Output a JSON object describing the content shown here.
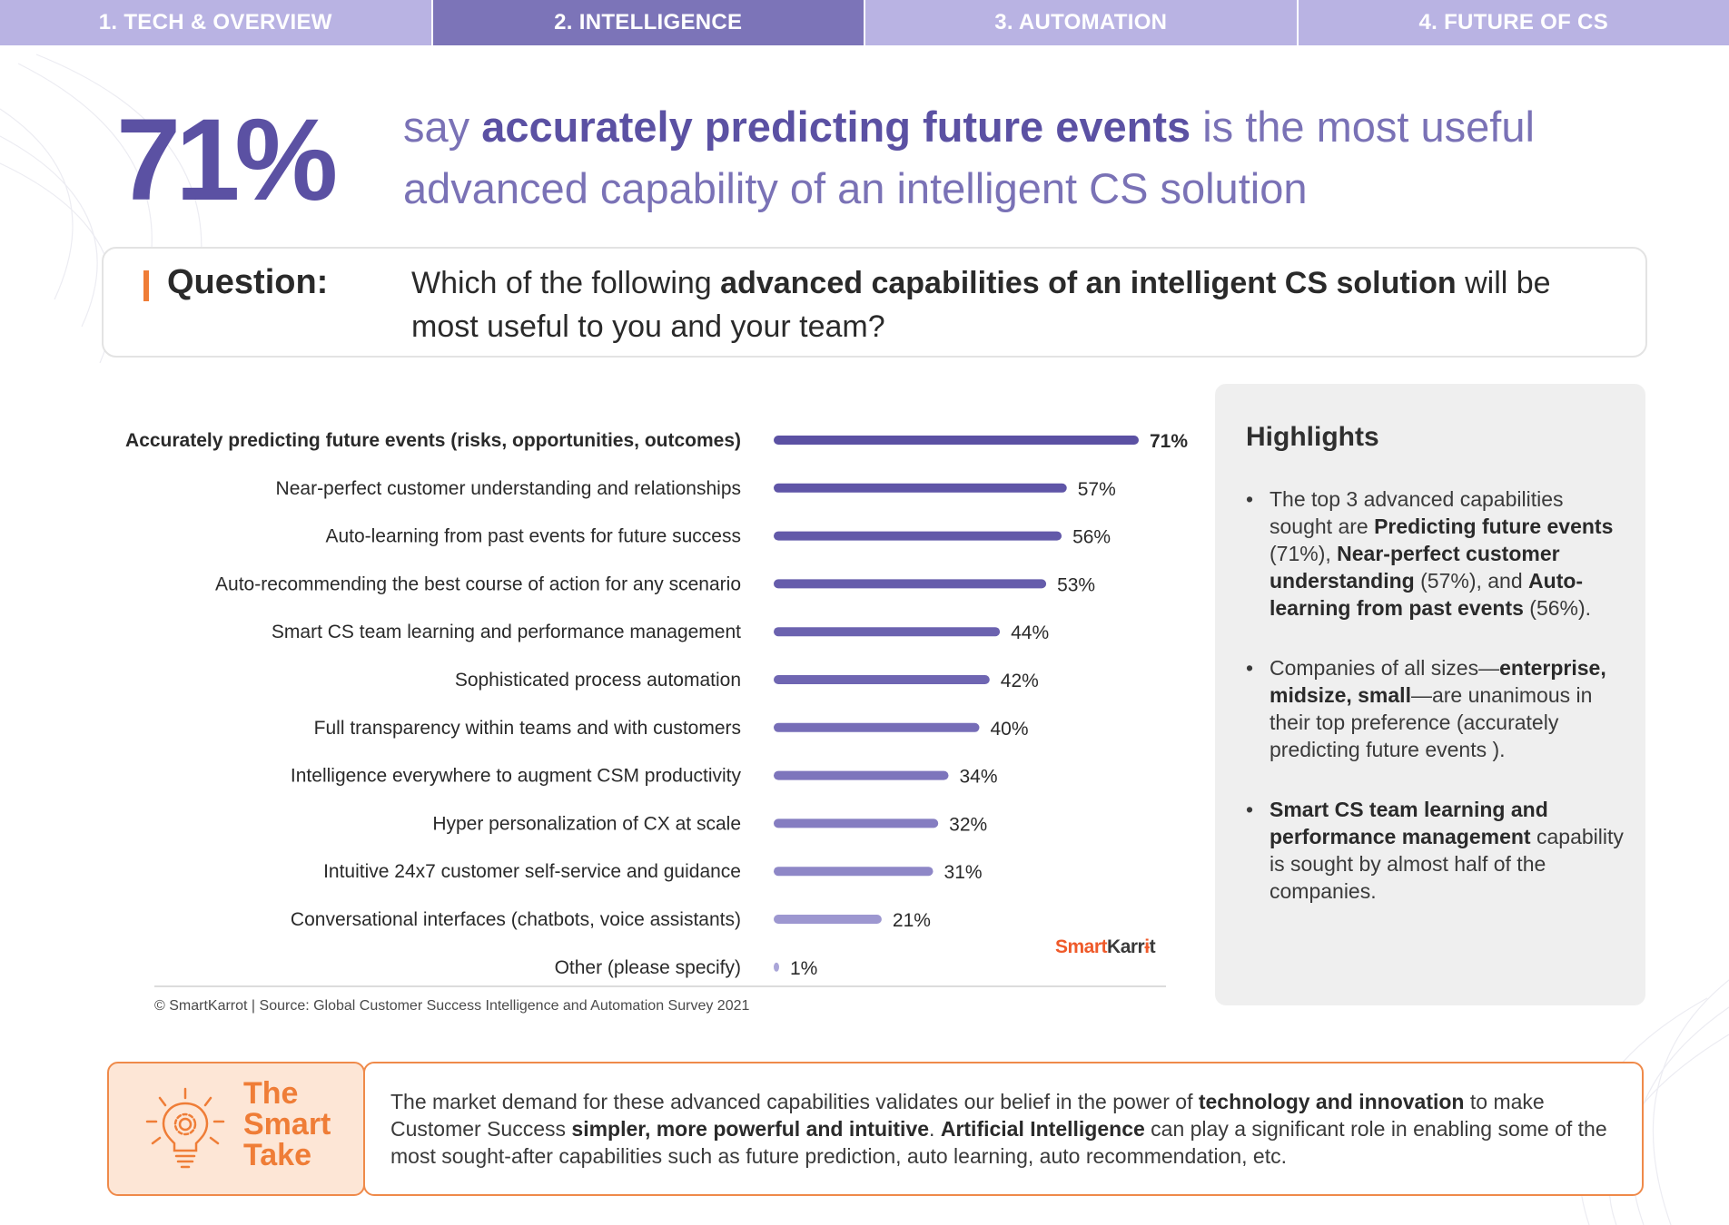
{
  "tabs": [
    {
      "label": "1. TECH & OVERVIEW",
      "active": false
    },
    {
      "label": "2. INTELLIGENCE",
      "active": true
    },
    {
      "label": "3. AUTOMATION",
      "active": false
    },
    {
      "label": "4. FUTURE OF CS",
      "active": false
    }
  ],
  "headline": {
    "stat": "71%",
    "pre": "say ",
    "emphasis": "accurately predicting future events",
    "post": " is the most useful advanced capability of an intelligent CS solution"
  },
  "question": {
    "label": "Question:",
    "pre": "Which of the following ",
    "emphasis": "advanced capabilities of an intelligent CS solution",
    "post": " will be most useful to you and your team?"
  },
  "chart_data": {
    "type": "bar",
    "orientation": "horizontal",
    "categories": [
      "Accurately predicting future events (risks, opportunities, outcomes)",
      "Near-perfect customer understanding and relationships",
      "Auto-learning from past events for future success",
      "Auto-recommending the best course of action for any scenario",
      "Smart CS team learning and performance management",
      "Sophisticated process automation",
      "Full transparency within teams and with customers",
      "Intelligence everywhere to augment CSM productivity",
      "Hyper personalization of CX at scale",
      "Intuitive 24x7 customer self-service and guidance",
      "Conversational interfaces (chatbots, voice assistants)",
      "Other (please specify)"
    ],
    "values": [
      71,
      57,
      56,
      53,
      44,
      42,
      40,
      34,
      32,
      31,
      21,
      1
    ],
    "value_labels": [
      "71%",
      "57%",
      "56%",
      "53%",
      "44%",
      "42%",
      "40%",
      "34%",
      "32%",
      "31%",
      "21%",
      "1%"
    ],
    "bar_colors": [
      "#5b51a3",
      "#5f55a7",
      "#6259a9",
      "#655cab",
      "#6b62af",
      "#6f66b2",
      "#766db7",
      "#7d75bc",
      "#857dc1",
      "#8e87c7",
      "#9d97d0",
      "#aaa5d8"
    ],
    "xlim": [
      0,
      71
    ],
    "grid": false,
    "legend": "none"
  },
  "brand": {
    "part1": "Smart",
    "part2": "Karr",
    "part3": "t"
  },
  "source": "© SmartKarrot | Source: Global Customer Success Intelligence and Automation Survey 2021",
  "highlights": {
    "title": "Highlights",
    "items": [
      {
        "s1": "The top 3 advanced capabilities sought are ",
        "b1": "Predicting future events",
        "s2": " (71%), ",
        "b2": "Near-perfect customer understanding",
        "s3": " (57%), and ",
        "b3": "Auto-learning from past events",
        "s4": " (56%)."
      },
      {
        "s1": "Companies of all sizes—",
        "b1": "enterprise, midsize, small",
        "s2": "—are unanimous in their top preference (accurately predicting future events )."
      },
      {
        "b1": "Smart CS team learning and performance management",
        "s2": " capability is sought by almost half of the companies."
      }
    ]
  },
  "smart_take": {
    "title_line1": "The",
    "title_line2": "Smart",
    "title_line3": "Take",
    "s1": "The market demand for these advanced capabilities validates our belief in the power of ",
    "b1": "technology and innovation",
    "s2": " to make Customer Success ",
    "b2": "simpler, more powerful and intuitive",
    "s3": ". ",
    "b3": "Artificial Intelligence",
    "s4": " can play a significant role in enabling some of the most sought-after capabilities such as future prediction, auto learning, auto recommendation, etc."
  },
  "colors": {
    "tab_bg": "#b9b3e3",
    "tab_active": "#7c74b8",
    "primary": "#5b51a3",
    "accent_orange": "#ef7d37",
    "panel_bg": "#efefef"
  }
}
